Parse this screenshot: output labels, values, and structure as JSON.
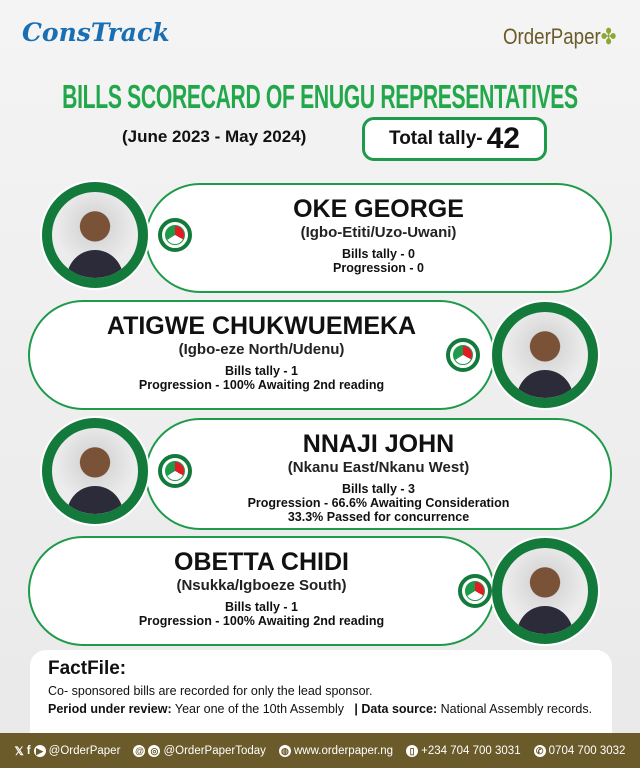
{
  "header": {
    "left_logo": "ConsTrack",
    "right_logo": "OrderPaper",
    "title": "BILLS SCORECARD OF ENUGU REPRESENTATIVES",
    "period": "(June 2023 - May 2024)",
    "total_label": "Total tally-",
    "total_value": "42"
  },
  "colors": {
    "accent_green": "#22a84a",
    "ring_green": "#137a3c",
    "footer_brown": "#6b5a2a"
  },
  "representatives": [
    {
      "name": "OKE GEORGE",
      "constituency": "(Igbo-Etiti/Uzo-Uwani)",
      "lines": [
        "Bills tally - 0",
        "Progression - 0"
      ],
      "party_icon": "pdp-umbrella-logo"
    },
    {
      "name": "ATIGWE CHUKWUEMEKA",
      "constituency": "(Igbo-eze North/Udenu)",
      "lines": [
        "Bills tally - 1",
        "Progression - 100% Awaiting 2nd reading"
      ],
      "party_icon": "pdp-umbrella-logo"
    },
    {
      "name": "NNAJI JOHN",
      "constituency": "(Nkanu East/Nkanu West)",
      "lines": [
        "Bills tally - 3",
        "Progression - 66.6%  Awaiting Consideration",
        "33.3% Passed for concurrence"
      ],
      "party_icon": "pdp-umbrella-logo"
    },
    {
      "name": "OBETTA CHIDI",
      "constituency": "(Nsukka/Igboeze South)",
      "lines": [
        "Bills tally - 1",
        "Progression - 100% Awaiting 2nd reading"
      ],
      "party_icon": "pdp-umbrella-logo"
    }
  ],
  "factfile": {
    "title": "FactFile:",
    "note": "Co- sponsored bills are recorded for only the lead sponsor.",
    "period_label": "Period under review:",
    "period_value": " Year one of the 10th Assembly   ",
    "source_label": "| Data source:",
    "source_value": " National Assembly records."
  },
  "footer": {
    "social1": "@OrderPaper",
    "social2": "@OrderPaperToday",
    "website": "www.orderpaper.ng",
    "phone1": "+234 704 700 3031",
    "phone2": "0704 700 3032"
  }
}
